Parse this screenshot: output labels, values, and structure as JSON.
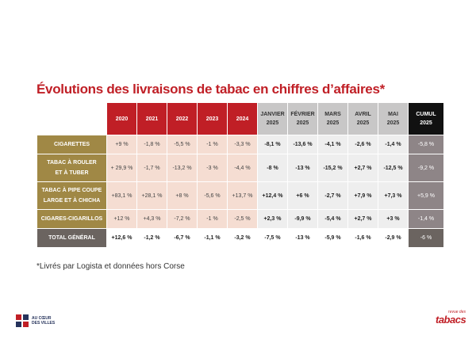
{
  "title": "Évolutions des livraisons de tabac en chiffres d’affaires*",
  "columns": {
    "years": [
      "2020",
      "2021",
      "2022",
      "2023",
      "2024"
    ],
    "months": [
      {
        "l1": "JANVIER",
        "l2": "2025"
      },
      {
        "l1": "FÉVRIER",
        "l2": "2025"
      },
      {
        "l1": "MARS",
        "l2": "2025"
      },
      {
        "l1": "AVRIL",
        "l2": "2025"
      },
      {
        "l1": "MAI",
        "l2": "2025"
      }
    ],
    "cumul": {
      "l1": "CUMUL",
      "l2": "2025"
    }
  },
  "rows": [
    {
      "l1": "CIGARETTES",
      "l2": "",
      "years": [
        "+9 %",
        "-1,8 %",
        "-5,5 %",
        "-1 %",
        "-3,3 %"
      ],
      "months": [
        "-8,1 %",
        "-13,6 %",
        "-4,1 %",
        "-2,6 %",
        "-1,4 %"
      ],
      "cumul": "-5,8 %"
    },
    {
      "l1": "TABAC À ROULER",
      "l2": "ET À TUBER",
      "years": [
        "+ 29,9 %",
        "-1,7 %",
        "-13,2 %",
        "-3 %",
        "-4,4 %"
      ],
      "months": [
        "-8 %",
        "-13 %",
        "-15,2 %",
        "+2,7 %",
        "-12,5 %"
      ],
      "cumul": "-9,2 %"
    },
    {
      "l1": "TABAC À PIPE COUPE",
      "l2": "LARGE ET À CHICHA",
      "years": [
        "+83,1 %",
        "+28,1 %",
        "+8 %",
        "-5,6 %",
        "+13,7 %"
      ],
      "months": [
        "+12,4 %",
        "+6 %",
        "-2,7 %",
        "+7,9 %",
        "+7,3 %"
      ],
      "cumul": "+5,9 %"
    },
    {
      "l1": "CIGARES-CIGARILLOS",
      "l2": "",
      "years": [
        "+12 %",
        "+4,3 %",
        "-7,2 %",
        "-1 %",
        "-2,5 %"
      ],
      "months": [
        "+2,3 %",
        "-9,9 %",
        "-5,4 %",
        "+2,7 %",
        "+3 %"
      ],
      "cumul": "-1,4 %"
    }
  ],
  "total": {
    "label": "TOTAL GÉNÉRAL",
    "years": [
      "+12,6 %",
      "-1,2 %",
      "-6,7 %",
      "-1,1 %",
      "-3,2 %"
    ],
    "months": [
      "-7,5 %",
      "-13 %",
      "-5,9 %",
      "-1,6 %",
      "-2,9 %"
    ],
    "cumul": "-6 %"
  },
  "footnote": "*Livrés par Logista et données hors Corse",
  "logos": {
    "left": {
      "line1": "AU CŒUR",
      "line2": "DES VILLES"
    },
    "right": {
      "small": "revue des",
      "big": "tabacs"
    }
  },
  "colors": {
    "title": "#c01f26",
    "year_header": "#c01f26",
    "label_bg": "#a08845",
    "cumul_bg": "#8e8587"
  }
}
